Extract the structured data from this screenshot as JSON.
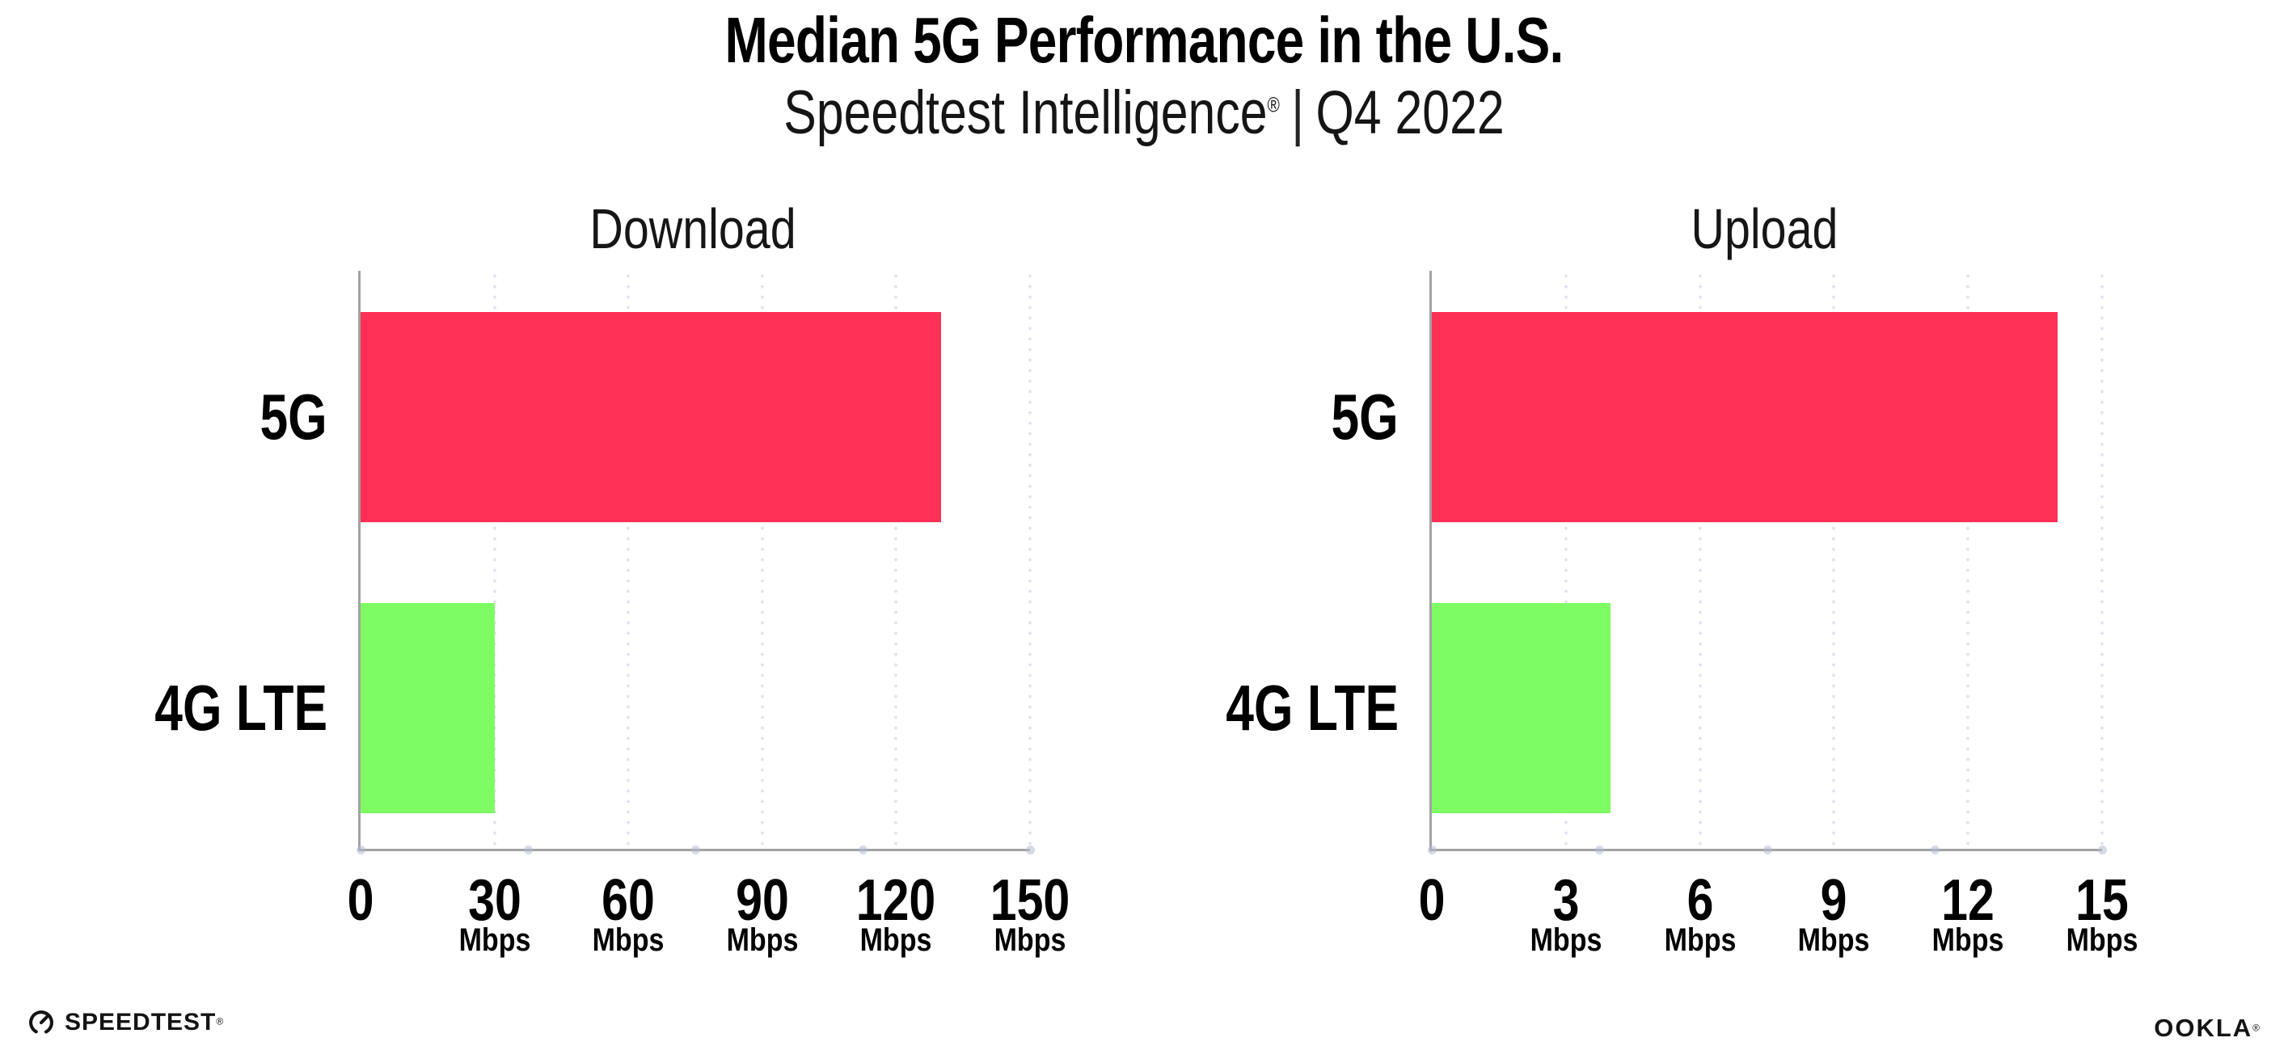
{
  "header": {
    "title": "Median 5G Performance in the U.S.",
    "subtitle": {
      "brand": "Speedtest Intelligence",
      "registered": "®",
      "divider": "|",
      "quarter": "Q4 2022"
    }
  },
  "chart_data": [
    {
      "type": "bar",
      "orientation": "horizontal",
      "title": "Download",
      "categories": [
        "5G",
        "4G LTE"
      ],
      "values": [
        130,
        30
      ],
      "unit": "Mbps",
      "xlim": [
        0,
        150
      ],
      "xticks": [
        0,
        30,
        60,
        90,
        120,
        150
      ],
      "bar_colors": [
        "#ff3056",
        "#7efc63"
      ],
      "grid": "dotted-vertical",
      "legend": "none"
    },
    {
      "type": "bar",
      "orientation": "horizontal",
      "title": "Upload",
      "categories": [
        "5G",
        "4G LTE"
      ],
      "values": [
        14,
        4
      ],
      "unit": "Mbps",
      "xlim": [
        0,
        15
      ],
      "xticks": [
        0,
        3,
        6,
        9,
        12,
        15
      ],
      "bar_colors": [
        "#ff3056",
        "#7efc63"
      ],
      "grid": "dotted-vertical",
      "legend": "none"
    }
  ],
  "colors": {
    "bar_5g": "#ff3056",
    "bar_4g_lte": "#7efc63",
    "axis": "#a2a2a4",
    "gridline_dots": "#e2e3ef"
  },
  "footer": {
    "speedtest_label": "SPEEDTEST",
    "speedtest_registered": "®",
    "ookla_label": "OOKLA",
    "ookla_registered": "®"
  }
}
